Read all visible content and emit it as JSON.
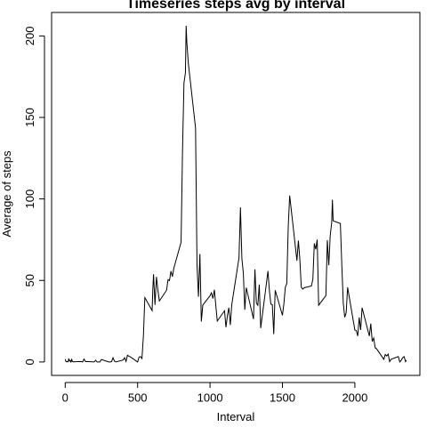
{
  "chart_data": {
    "type": "line",
    "title": "Timeseries steps avg by interval",
    "xlabel": "Interval",
    "ylabel": "Average of steps",
    "x": [
      0,
      5,
      10,
      15,
      20,
      25,
      30,
      35,
      40,
      45,
      50,
      55,
      100,
      110,
      120,
      130,
      140,
      150,
      200,
      210,
      220,
      230,
      240,
      250,
      300,
      310,
      320,
      330,
      340,
      350,
      400,
      410,
      420,
      430,
      440,
      450,
      500,
      510,
      520,
      530,
      540,
      550,
      600,
      605,
      610,
      620,
      630,
      640,
      650,
      700,
      710,
      720,
      730,
      740,
      750,
      800,
      810,
      820,
      830,
      835,
      840,
      850,
      900,
      910,
      920,
      930,
      940,
      950,
      1000,
      1010,
      1020,
      1030,
      1040,
      1050,
      1100,
      1110,
      1120,
      1130,
      1140,
      1150,
      1200,
      1210,
      1220,
      1230,
      1240,
      1250,
      1300,
      1310,
      1320,
      1330,
      1340,
      1350,
      1400,
      1410,
      1420,
      1430,
      1440,
      1450,
      1500,
      1510,
      1520,
      1530,
      1540,
      1550,
      1600,
      1610,
      1620,
      1630,
      1640,
      1650,
      1700,
      1710,
      1720,
      1730,
      1740,
      1750,
      1800,
      1810,
      1820,
      1830,
      1840,
      1845,
      1850,
      1900,
      1910,
      1920,
      1930,
      1940,
      1950,
      2000,
      2010,
      2020,
      2030,
      2040,
      2050,
      2100,
      2110,
      2120,
      2130,
      2140,
      2150,
      2200,
      2210,
      2220,
      2230,
      2240,
      2250,
      2300,
      2310,
      2320,
      2330,
      2340,
      2350,
      2355
    ],
    "series": [
      {
        "name": "steps",
        "color": "#000000",
        "values": [
          1.7,
          0.3,
          0.1,
          0.2,
          0.1,
          2.1,
          0.5,
          0.9,
          0,
          1.5,
          0.3,
          0.1,
          0.3,
          0.2,
          0,
          1.8,
          0.2,
          0.3,
          0,
          1.1,
          0,
          0,
          0,
          1.5,
          0,
          0,
          0.2,
          2.6,
          0.5,
          0,
          1.2,
          2.6,
          0.3,
          4.1,
          3.5,
          3.1,
          0,
          3.0,
          3.3,
          2.1,
          16,
          39.5,
          31.5,
          44.8,
          53.8,
          35,
          52.2,
          44,
          37.4,
          44,
          50.5,
          49.9,
          55.7,
          52.3,
          57.5,
          73.4,
          129.4,
          171.2,
          177.3,
          206.2,
          195.9,
          183.4,
          143.5,
          59.8,
          40,
          66.2,
          24.8,
          34.9,
          40.6,
          42.4,
          38.9,
          44.3,
          34.5,
          25.1,
          31.4,
          21.3,
          28.4,
          33.3,
          22.7,
          35.1,
          63.9,
          94.8,
          63.4,
          54.5,
          32,
          45.6,
          26.3,
          56.8,
          36.1,
          34.8,
          47.5,
          20.8,
          55.8,
          43.6,
          35.5,
          35.2,
          17.1,
          44,
          28.6,
          35.7,
          45.9,
          48.1,
          82.9,
          102.1,
          62.1,
          74.5,
          63.2,
          45.9,
          44.7,
          45.5,
          46.6,
          50.7,
          72.7,
          69.1,
          75.1,
          34.8,
          40.7,
          74.7,
          59.3,
          77.7,
          85.3,
          99.5,
          86.6,
          84.9,
          59.1,
          36.3,
          27.4,
          30.2,
          45.7,
          19.6,
          19.3,
          15.9,
          27.3,
          19.6,
          33.3,
          15.9,
          23.5,
          12.5,
          14.7,
          8.7,
          8.1,
          1.6,
          4.6,
          3.7,
          4.8,
          0.2,
          1.6,
          3.3,
          0,
          1,
          2.6,
          3.3,
          0.2,
          1.1
        ]
      }
    ],
    "xlim": [
      -94,
      2449
    ],
    "ylim": [
      -8.25,
      214.4
    ],
    "xticks": [
      0,
      500,
      1000,
      1500,
      2000
    ],
    "yticks": [
      0,
      50,
      100,
      150,
      200
    ]
  }
}
